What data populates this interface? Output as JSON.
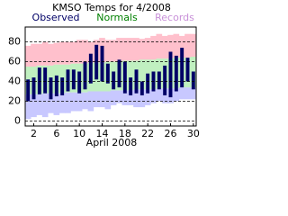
{
  "chart_data": {
    "type": "temp-range",
    "title": "KMSO Temps for 4/2008",
    "x_label": "April 2008",
    "x": [
      1,
      2,
      3,
      4,
      5,
      6,
      7,
      8,
      9,
      10,
      11,
      12,
      13,
      14,
      15,
      16,
      17,
      18,
      19,
      20,
      21,
      22,
      23,
      24,
      25,
      26,
      27,
      28,
      29,
      30
    ],
    "xlim": [
      0.5,
      30.5
    ],
    "xticks": [
      2,
      6,
      10,
      14,
      18,
      22,
      26,
      30
    ],
    "ylim": [
      -5,
      95
    ],
    "yticks": [
      0,
      20,
      40,
      60,
      80
    ],
    "grid": true,
    "series": [
      {
        "name": "Records",
        "color": "#ffc0cc",
        "low_color": "#c8c8ff",
        "label_color": "#c890d8",
        "high": [
          76,
          78,
          78,
          80,
          78,
          79,
          80,
          80,
          80,
          82,
          82,
          80,
          82,
          84,
          82,
          82,
          84,
          84,
          84,
          84,
          83,
          84,
          86,
          88,
          86,
          87,
          88,
          86,
          88,
          88
        ],
        "low": [
          2,
          4,
          6,
          4,
          8,
          6,
          8,
          8,
          10,
          10,
          12,
          10,
          14,
          14,
          12,
          16,
          18,
          16,
          16,
          14,
          14,
          16,
          18,
          20,
          18,
          18,
          20,
          22,
          22,
          22
        ]
      },
      {
        "name": "Normals",
        "color": "#c0f0c0",
        "label_color": "#008000",
        "high": [
          55,
          55,
          56,
          56,
          56,
          57,
          57,
          57,
          58,
          58,
          58,
          59,
          59,
          59,
          60,
          60,
          60,
          61,
          61,
          61,
          62,
          62,
          62,
          63,
          63,
          63,
          64,
          64,
          64,
          65
        ],
        "low": [
          27,
          27,
          27,
          28,
          28,
          28,
          28,
          29,
          29,
          29,
          29,
          30,
          30,
          30,
          30,
          31,
          31,
          31,
          31,
          32,
          32,
          32,
          32,
          33,
          33,
          33,
          33,
          34,
          34,
          34
        ]
      },
      {
        "name": "Observed",
        "color": "#000066",
        "label_color": "#000066",
        "high": [
          42,
          44,
          54,
          54,
          44,
          46,
          44,
          52,
          52,
          50,
          60,
          68,
          77,
          76,
          58,
          50,
          62,
          60,
          44,
          52,
          40,
          48,
          50,
          50,
          56,
          70,
          66,
          74,
          64,
          50
        ],
        "low": [
          20,
          22,
          27,
          28,
          22,
          25,
          26,
          30,
          32,
          28,
          32,
          38,
          42,
          40,
          38,
          32,
          34,
          28,
          26,
          28,
          26,
          28,
          30,
          32,
          26,
          24,
          30,
          34,
          40,
          32
        ]
      }
    ]
  }
}
